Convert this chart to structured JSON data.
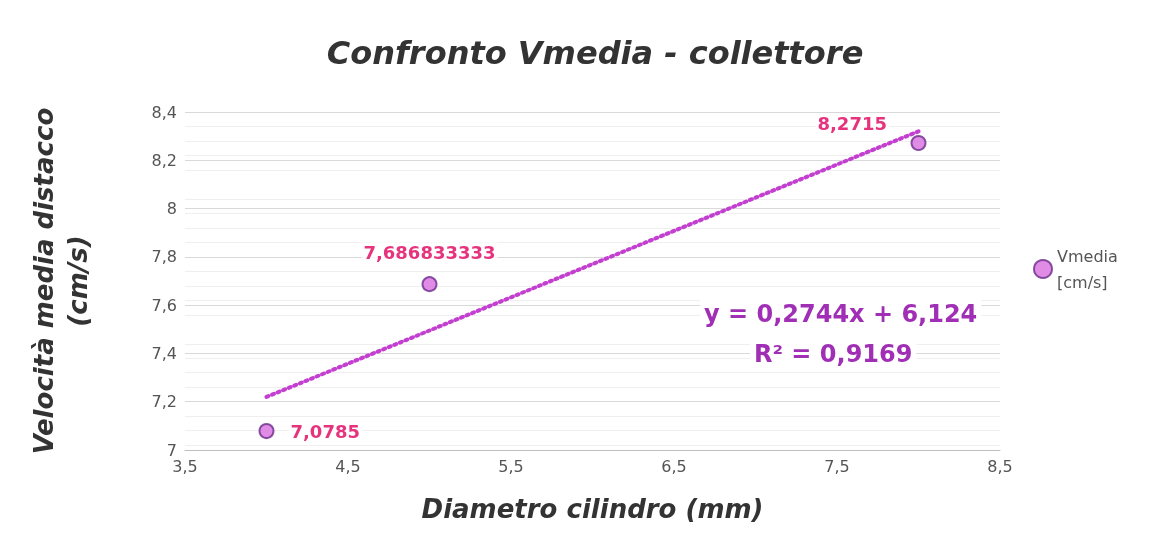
{
  "chart_data": {
    "type": "scatter",
    "title": "Confronto Vmedia - collettore",
    "xlabel": "Diametro cilindro (mm)",
    "ylabel": "Velocità media distacco (cm/s)",
    "xlim": [
      3.5,
      8.5
    ],
    "xticks": [
      {
        "value": 3.5,
        "label": "3,5"
      },
      {
        "value": 4.5,
        "label": "4,5"
      },
      {
        "value": 5.5,
        "label": "5,5"
      },
      {
        "value": 6.5,
        "label": "6,5"
      },
      {
        "value": 7.5,
        "label": "7,5"
      },
      {
        "value": 8.5,
        "label": "8,5"
      }
    ],
    "ylim": [
      7,
      8.4
    ],
    "yticks": [
      7,
      {
        "value": 7.2,
        "label": "7,2"
      },
      {
        "value": 7.4,
        "label": "7,4"
      },
      {
        "value": 7.6,
        "label": "7,6"
      },
      {
        "value": 7.8,
        "label": "7,8"
      },
      8,
      {
        "value": 8.2,
        "label": "8,2"
      },
      {
        "value": 8.4,
        "label": "8,4"
      }
    ],
    "series": [
      {
        "name": "Vmedia [cm/s]",
        "type": "scatter",
        "color": "#d86fe0",
        "x": [
          4,
          5,
          8
        ],
        "values": [
          7.0785,
          7.686833333,
          8.2715
        ],
        "value_labels": [
          "7,0785",
          "7,686833333",
          "8,2715"
        ]
      },
      {
        "type": "line",
        "color": "#c33fd0",
        "line_style": "dotted",
        "marker": "none",
        "x": [
          4,
          8
        ],
        "values": [
          7.22,
          8.32
        ]
      }
    ],
    "annotations": [
      "y = 0,2744x + 6,124",
      "R² = 0,9169"
    ],
    "marker": "circle",
    "grid": "y",
    "legend": "right"
  }
}
